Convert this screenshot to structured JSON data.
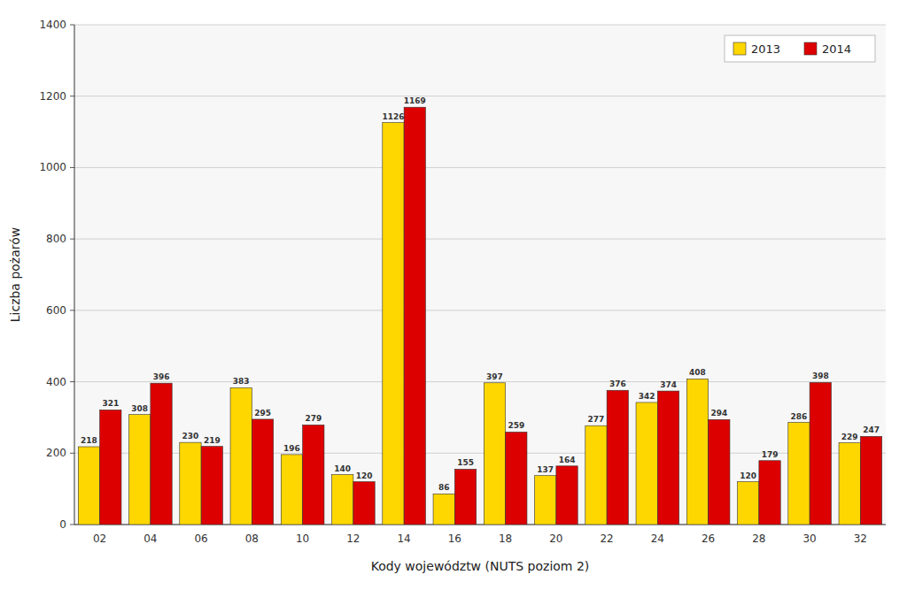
{
  "chart_data": {
    "type": "bar",
    "categories": [
      "02",
      "04",
      "06",
      "08",
      "10",
      "12",
      "14",
      "16",
      "18",
      "20",
      "22",
      "24",
      "26",
      "28",
      "30",
      "32"
    ],
    "series": [
      {
        "name": "2013",
        "color": "#FFD700",
        "values": [
          218,
          308,
          230,
          383,
          196,
          140,
          1126,
          86,
          397,
          137,
          277,
          342,
          408,
          120,
          286,
          229
        ]
      },
      {
        "name": "2014",
        "color": "#DD0000",
        "values": [
          321,
          396,
          219,
          295,
          279,
          120,
          1169,
          155,
          259,
          164,
          376,
          374,
          294,
          179,
          398,
          247
        ]
      }
    ],
    "xlabel": "Kody województw (NUTS poziom 2)",
    "ylabel": "Liczba pożarów",
    "ylim": [
      0,
      1400
    ],
    "yticks": [
      0,
      200,
      400,
      600,
      800,
      1000,
      1200,
      1400
    ],
    "grid": true,
    "legend": "upper right",
    "data_labels": true
  }
}
